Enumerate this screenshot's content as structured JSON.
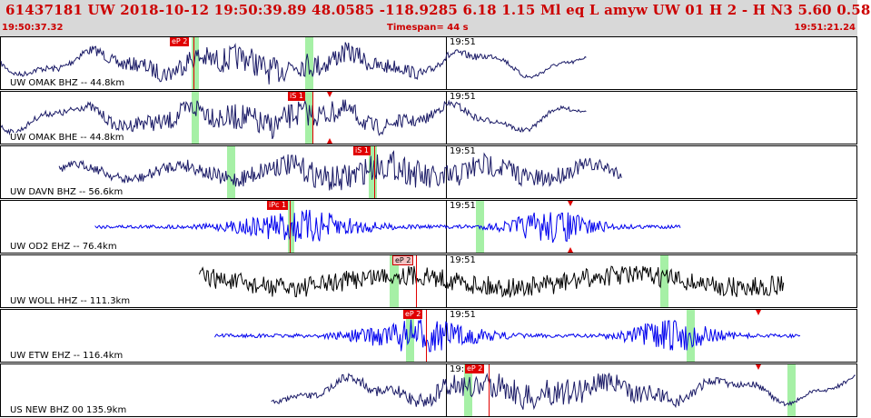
{
  "header": {
    "title": "61437181 UW 2018-10-12 19:50:39.89    48.0585 -118.9285    6.18  1.15 Ml   eq   L  amyw       UW 01  H   2  -  H N3     5.60  0.58",
    "start_time": "19:50:37.32",
    "timespan": "Timespan=  44 s",
    "end_time": "19:51:21.24"
  },
  "time_marker": "19:51",
  "panels": [
    {
      "label": "UW OMAK BHZ -- 44.8km",
      "color": "#1a1a66",
      "phases": [
        {
          "label": "eP 2"
        }
      ],
      "trace": {
        "start": 0.0,
        "end": 0.685,
        "kind": "long"
      }
    },
    {
      "label": "UW OMAK BHE -- 44.8km",
      "color": "#1a1a66",
      "phases": [
        {
          "label": "iS 1"
        }
      ],
      "trace": {
        "start": 0.0,
        "end": 0.685,
        "kind": "long"
      }
    },
    {
      "label": "UW DAVN BHZ -- 56.6km",
      "color": "#1a1a66",
      "phases": [
        {
          "label": "iS 1"
        }
      ],
      "trace": {
        "start": 0.068,
        "end": 0.726,
        "kind": "mixed"
      }
    },
    {
      "label": "UW OD2 EHZ -- 76.4km",
      "color": "#0000ee",
      "phases": [
        {
          "label": "iPc 1"
        }
      ],
      "trace": {
        "start": 0.11,
        "end": 0.795,
        "kind": "short"
      }
    },
    {
      "label": "UW WOLL HHZ -- 111.3km",
      "color": "#000000",
      "phases": [
        {
          "label": "eP 2"
        }
      ],
      "trace": {
        "start": 0.232,
        "end": 0.915,
        "kind": "noisy"
      }
    },
    {
      "label": "UW ETW EHZ -- 116.4km",
      "color": "#0000ee",
      "phases": [
        {
          "label": "eP 2"
        }
      ],
      "trace": {
        "start": 0.25,
        "end": 0.935,
        "kind": "short"
      }
    },
    {
      "label": "US NEW BHZ 00 135.9km",
      "color": "#1a1a66",
      "phases": [
        {
          "label": "eP 2"
        }
      ],
      "trace": {
        "start": 0.316,
        "end": 1.0,
        "kind": "long"
      }
    }
  ]
}
